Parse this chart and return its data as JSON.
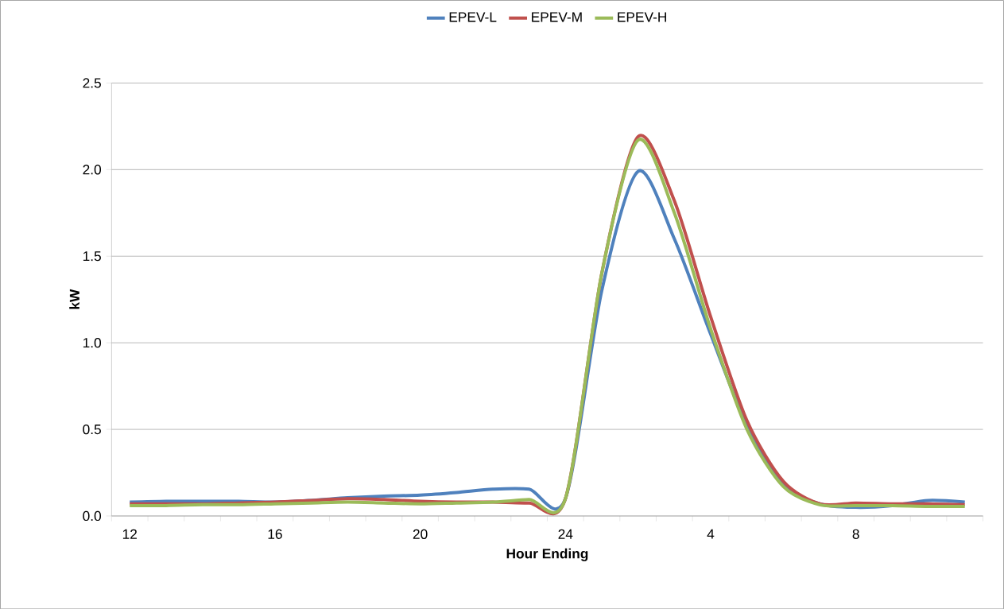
{
  "chart_data": {
    "type": "line",
    "xlabel": "Hour Ending",
    "ylabel": "kW",
    "categories": [
      "12",
      null,
      null,
      null,
      "16",
      null,
      null,
      null,
      "20",
      null,
      null,
      null,
      "24",
      null,
      null,
      null,
      "4",
      null,
      null,
      null,
      "8",
      null,
      null,
      null
    ],
    "series": [
      {
        "name": "EPEV-L",
        "color": "#4f81bd",
        "values": [
          0.08,
          0.085,
          0.085,
          0.085,
          0.08,
          0.09,
          0.105,
          0.115,
          0.12,
          0.135,
          0.155,
          0.155,
          0.1,
          1.3,
          1.99,
          1.6,
          1.05,
          0.52,
          0.18,
          0.07,
          0.05,
          0.06,
          0.09,
          0.08
        ]
      },
      {
        "name": "EPEV-M",
        "color": "#c0504d",
        "values": [
          0.07,
          0.07,
          0.07,
          0.075,
          0.08,
          0.09,
          0.1,
          0.095,
          0.085,
          0.08,
          0.08,
          0.075,
          0.1,
          1.4,
          2.19,
          1.82,
          1.15,
          0.55,
          0.2,
          0.07,
          0.075,
          0.07,
          0.07,
          0.065
        ]
      },
      {
        "name": "EPEV-H",
        "color": "#9bbb59",
        "values": [
          0.06,
          0.06,
          0.065,
          0.065,
          0.07,
          0.075,
          0.08,
          0.075,
          0.07,
          0.075,
          0.08,
          0.095,
          0.1,
          1.4,
          2.17,
          1.75,
          1.08,
          0.5,
          0.17,
          0.065,
          0.06,
          0.06,
          0.055,
          0.055
        ]
      }
    ],
    "ylim": [
      0,
      2.5
    ],
    "yticks": [
      {
        "value": 0,
        "label": "0.0"
      },
      {
        "value": 0.5,
        "label": "0.5"
      },
      {
        "value": 1,
        "label": "1.0"
      },
      {
        "value": 1.5,
        "label": "1.5"
      },
      {
        "value": 2,
        "label": "2.0"
      },
      {
        "value": 2.5,
        "label": "2.5"
      }
    ],
    "grid": "y",
    "legend": "top",
    "marker": "none",
    "line_style": "solid"
  }
}
